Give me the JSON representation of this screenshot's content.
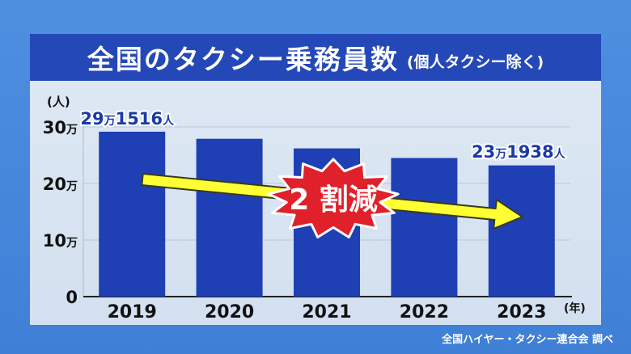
{
  "title": "全国のタクシー乗務員数",
  "subtitle": "(個人タクシー除く)",
  "source": "全国ハイヤー・タクシー連合会 調べ",
  "chart_data": {
    "type": "bar",
    "categories": [
      "2019",
      "2020",
      "2021",
      "2022",
      "2023"
    ],
    "values": [
      291516,
      279000,
      262000,
      245000,
      231938
    ],
    "ylim": [
      0,
      300000
    ],
    "yticks": [
      {
        "value": 0,
        "num": "0",
        "unit": ""
      },
      {
        "value": 100000,
        "num": "10",
        "unit": "万"
      },
      {
        "value": 200000,
        "num": "20",
        "unit": "万"
      },
      {
        "value": 300000,
        "num": "30",
        "unit": "万"
      }
    ],
    "y_unit_label": "(人)",
    "x_unit_label": "(年)",
    "grid": true,
    "bar_color": "#1f3fb5",
    "label_color": "#1a3aa8",
    "annotations": {
      "first": {
        "num1": "29",
        "man": "万",
        "num2": "1516",
        "unit": "人"
      },
      "last": {
        "num1": "23",
        "man": "万",
        "num2": "1938",
        "unit": "人"
      },
      "burst_text": "2 割減",
      "burst_color": "#e0202a",
      "arrow_color": "#ffff33"
    }
  }
}
